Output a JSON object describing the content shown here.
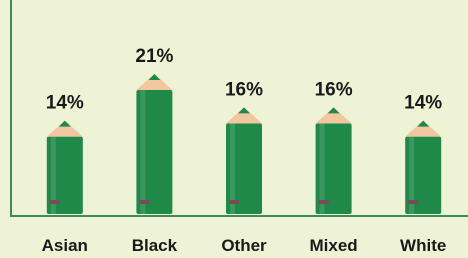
{
  "chart_data": {
    "type": "pencil-bar",
    "categories": [
      "Asian",
      "Black",
      "Other",
      "Mixed",
      "White"
    ],
    "values": [
      14,
      21,
      16,
      16,
      14
    ],
    "value_labels": [
      "14%",
      "21%",
      "16%",
      "16%",
      "14%"
    ],
    "color": "#1f8a48"
  }
}
